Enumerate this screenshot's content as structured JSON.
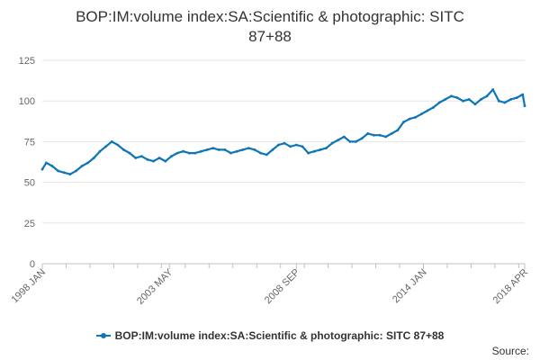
{
  "chart_data": {
    "type": "line",
    "title_lines": [
      "BOP:IM:volume index:SA:Scientific & photographic: SITC",
      "87+88"
    ],
    "xlabel": "",
    "ylabel": "",
    "ylim": [
      0,
      125
    ],
    "y_ticks": [
      0,
      25,
      50,
      75,
      100,
      125
    ],
    "x_tick_labels": [
      "1998 JAN",
      "2003 MAY",
      "2008 SEP",
      "2014 JAN",
      "2018 APR"
    ],
    "x_tick_dates": [
      "1998-01",
      "2003-05",
      "2008-09",
      "2014-01",
      "2018-04"
    ],
    "grid": "horizontal",
    "legend": "bottom-center",
    "series": [
      {
        "name": "BOP:IM:volume index:SA:Scientific & photographic: SITC 87+88",
        "color": "#0e75b7",
        "x": [
          "1998-01",
          "1998-03",
          "1998-06",
          "1998-09",
          "1998-12",
          "1999-03",
          "1999-06",
          "1999-09",
          "1999-12",
          "2000-03",
          "2000-06",
          "2000-09",
          "2000-12",
          "2001-03",
          "2001-06",
          "2001-09",
          "2001-12",
          "2002-03",
          "2002-06",
          "2002-09",
          "2002-12",
          "2003-03",
          "2003-06",
          "2003-09",
          "2003-12",
          "2004-03",
          "2004-06",
          "2004-09",
          "2004-12",
          "2005-03",
          "2005-06",
          "2005-09",
          "2005-12",
          "2006-03",
          "2006-06",
          "2006-09",
          "2006-12",
          "2007-03",
          "2007-06",
          "2007-09",
          "2007-12",
          "2008-03",
          "2008-06",
          "2008-09",
          "2008-12",
          "2009-03",
          "2009-06",
          "2009-09",
          "2009-12",
          "2010-03",
          "2010-06",
          "2010-09",
          "2010-12",
          "2011-03",
          "2011-06",
          "2011-09",
          "2011-12",
          "2012-03",
          "2012-06",
          "2012-09",
          "2012-12",
          "2013-03",
          "2013-06",
          "2013-09",
          "2013-12",
          "2014-03",
          "2014-06",
          "2014-09",
          "2014-12",
          "2015-03",
          "2015-06",
          "2015-09",
          "2015-12",
          "2016-03",
          "2016-06",
          "2016-09",
          "2016-12",
          "2017-03",
          "2017-06",
          "2017-09",
          "2017-12",
          "2018-03",
          "2018-04"
        ],
        "values": [
          58,
          62,
          60,
          57,
          56,
          55,
          57,
          60,
          62,
          65,
          69,
          72,
          75,
          73,
          70,
          68,
          65,
          66,
          64,
          63,
          65,
          63,
          66,
          68,
          69,
          68,
          68,
          69,
          70,
          71,
          70,
          70,
          68,
          69,
          70,
          71,
          70,
          68,
          67,
          70,
          73,
          74,
          72,
          73,
          72,
          68,
          69,
          70,
          71,
          74,
          76,
          78,
          75,
          75,
          77,
          80,
          79,
          79,
          78,
          80,
          82,
          87,
          89,
          90,
          92,
          94,
          96,
          99,
          101,
          103,
          102,
          100,
          101,
          98,
          101,
          103,
          107,
          100,
          99,
          101,
          102,
          104,
          97
        ]
      }
    ]
  },
  "footer": {
    "legend_label": "BOP:IM:volume index:SA:Scientific & photographic: SITC 87+88",
    "source_label": "Source:"
  }
}
